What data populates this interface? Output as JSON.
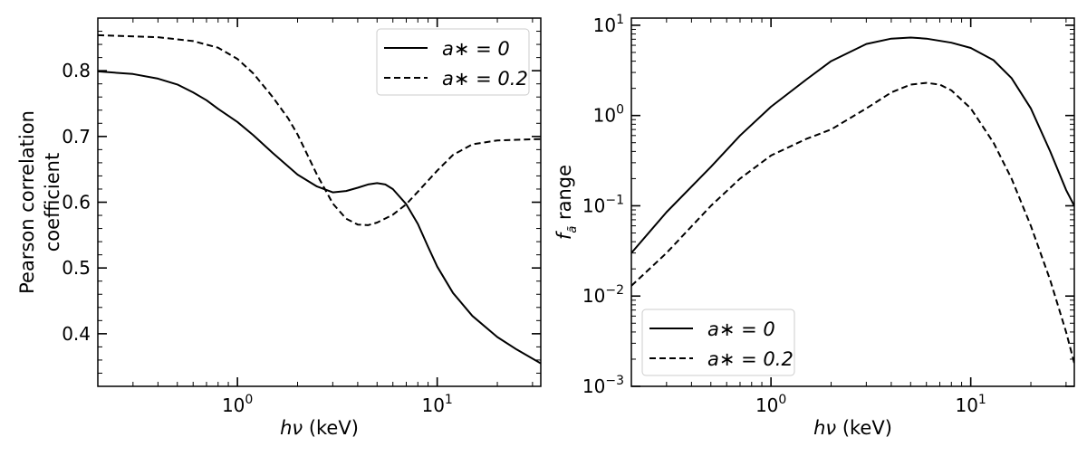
{
  "chart_data": [
    {
      "type": "line",
      "xlabel": "hν (keV)",
      "ylabel": "Pearson correlation coefficient",
      "ylabel_lines": [
        "Pearson correlation",
        "coefficient"
      ],
      "x_scale": "log",
      "y_scale": "linear",
      "xlim": [
        0.2,
        33
      ],
      "ylim": [
        0.32,
        0.88
      ],
      "x_ticks": [
        {
          "value": 1,
          "base": "10",
          "exp": "0"
        },
        {
          "value": 10,
          "base": "10",
          "exp": "1"
        }
      ],
      "y_ticks": [
        {
          "value": 0.4,
          "label": "0.4"
        },
        {
          "value": 0.5,
          "label": "0.5"
        },
        {
          "value": 0.6,
          "label": "0.6"
        },
        {
          "value": 0.7,
          "label": "0.7"
        },
        {
          "value": 0.8,
          "label": "0.8"
        }
      ],
      "legend_position": "top-right",
      "series": [
        {
          "name": "a* = 0",
          "name_display": "a∗ = 0",
          "style": "solid",
          "color": "#000000",
          "x": [
            0.2,
            0.3,
            0.4,
            0.5,
            0.6,
            0.7,
            0.8,
            1.0,
            1.2,
            1.5,
            2.0,
            2.5,
            3.0,
            3.5,
            4.0,
            4.5,
            5.0,
            5.5,
            6.0,
            7.0,
            8.0,
            9.0,
            10.0,
            12.0,
            15.0,
            20.0,
            25.0,
            33.0
          ],
          "y": [
            0.799,
            0.795,
            0.788,
            0.779,
            0.767,
            0.755,
            0.742,
            0.722,
            0.702,
            0.675,
            0.642,
            0.624,
            0.615,
            0.617,
            0.622,
            0.627,
            0.629,
            0.627,
            0.62,
            0.597,
            0.567,
            0.532,
            0.502,
            0.462,
            0.427,
            0.395,
            0.376,
            0.355
          ]
        },
        {
          "name": "a* = 0.2",
          "name_display": "a∗ = 0.2",
          "style": "dashed",
          "color": "#000000",
          "x": [
            0.2,
            0.4,
            0.6,
            0.8,
            1.0,
            1.2,
            1.5,
            1.8,
            2.0,
            2.5,
            3.0,
            3.5,
            4.0,
            4.5,
            5.0,
            6.0,
            7.0,
            8.0,
            10.0,
            12.0,
            15.0,
            20.0,
            25.0,
            33.0
          ],
          "y": [
            0.854,
            0.851,
            0.845,
            0.835,
            0.818,
            0.796,
            0.76,
            0.727,
            0.703,
            0.642,
            0.598,
            0.575,
            0.566,
            0.565,
            0.569,
            0.581,
            0.597,
            0.616,
            0.648,
            0.672,
            0.688,
            0.694,
            0.695,
            0.696
          ]
        }
      ]
    },
    {
      "type": "line",
      "xlabel": "hν (keV)",
      "ylabel": "f_ã range",
      "ylabel_sub": "ã",
      "ylabel_rest": " range",
      "x_scale": "log",
      "y_scale": "log",
      "xlim": [
        0.2,
        33
      ],
      "ylim": [
        0.001,
        12
      ],
      "x_ticks": [
        {
          "value": 1,
          "base": "10",
          "exp": "0"
        },
        {
          "value": 10,
          "base": "10",
          "exp": "1"
        }
      ],
      "y_ticks": [
        {
          "value": 0.001,
          "base": "10",
          "exp": "−3"
        },
        {
          "value": 0.01,
          "base": "10",
          "exp": "−2"
        },
        {
          "value": 0.1,
          "base": "10",
          "exp": "−1"
        },
        {
          "value": 1,
          "base": "10",
          "exp": "0"
        },
        {
          "value": 10,
          "base": "10",
          "exp": "1"
        }
      ],
      "legend_position": "bottom-left",
      "series": [
        {
          "name": "a* = 0",
          "name_display": "a∗ = 0",
          "style": "solid",
          "color": "#000000",
          "x": [
            0.2,
            0.3,
            0.5,
            0.7,
            1.0,
            1.5,
            2.0,
            3.0,
            4.0,
            5.0,
            6.0,
            8.0,
            10.0,
            13.0,
            16.0,
            20.0,
            25.0,
            30.0,
            33.0
          ],
          "y": [
            0.03,
            0.085,
            0.27,
            0.6,
            1.25,
            2.5,
            4.0,
            6.2,
            7.1,
            7.3,
            7.1,
            6.4,
            5.6,
            4.1,
            2.6,
            1.2,
            0.4,
            0.15,
            0.1
          ]
        },
        {
          "name": "a* = 0.2",
          "name_display": "a∗ = 0.2",
          "style": "dashed",
          "color": "#000000",
          "x": [
            0.2,
            0.3,
            0.5,
            0.7,
            1.0,
            1.5,
            2.0,
            3.0,
            4.0,
            5.0,
            6.0,
            7.0,
            8.0,
            10.0,
            13.0,
            16.0,
            20.0,
            25.0,
            30.0,
            33.0
          ],
          "y": [
            0.013,
            0.03,
            0.1,
            0.2,
            0.36,
            0.55,
            0.7,
            1.2,
            1.8,
            2.2,
            2.3,
            2.2,
            1.9,
            1.2,
            0.5,
            0.2,
            0.06,
            0.015,
            0.004,
            0.0018
          ]
        }
      ]
    }
  ]
}
